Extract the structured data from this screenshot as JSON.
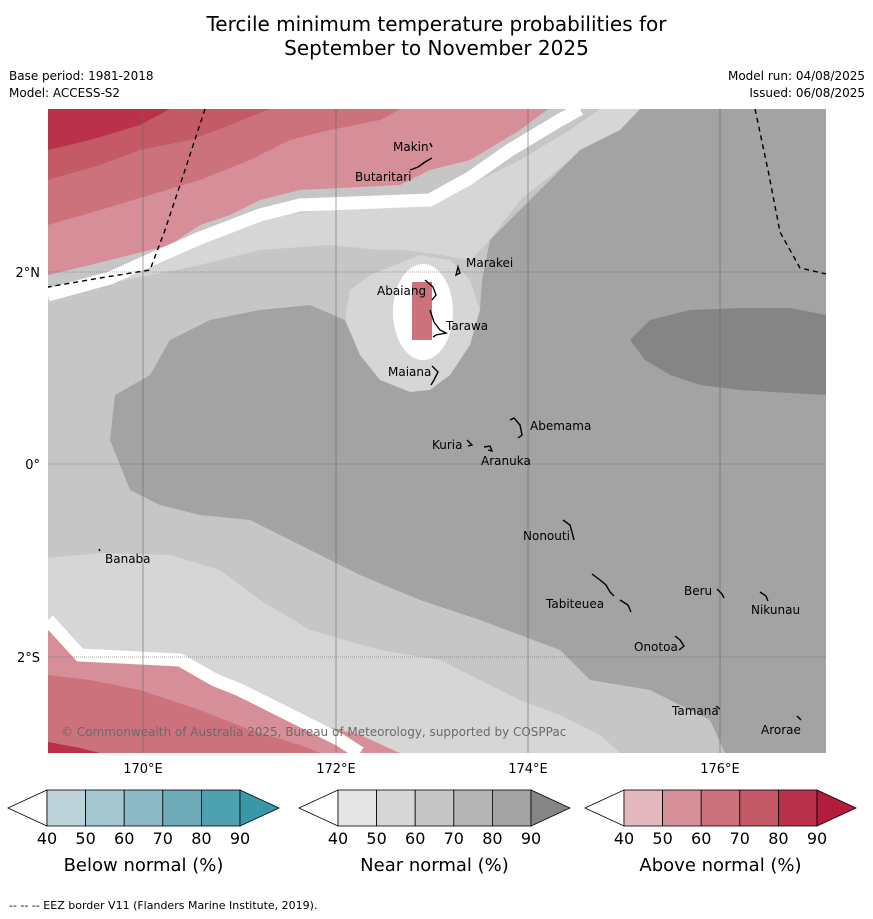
{
  "title_line1": "Tercile minimum temperature probabilities for",
  "title_line2": "September to November 2025",
  "base_period": "Base period: 1981-2018",
  "model": "Model: ACCESS-S2",
  "model_run": "Model run: 04/08/2025",
  "issued": "Issued: 06/08/2025",
  "map": {
    "lon_labels": [
      "170°E",
      "172°E",
      "174°E",
      "176°E"
    ],
    "lat_labels": [
      "2°N",
      "0°",
      "2°S"
    ],
    "places": [
      "Makin",
      "Butaritari",
      "Marakei",
      "Abaiang",
      "Tarawa",
      "Maiana",
      "Abemama",
      "Kuria",
      "Aranuka",
      "Nonouti",
      "Banaba",
      "Beru",
      "Tabiteuea",
      "Nikunau",
      "Onotoa",
      "Tamana",
      "Arorae"
    ],
    "copyright": "© Commonwealth of Australia 2025, Bureau of Meteorology, supported by COSPPac"
  },
  "colorbars": [
    {
      "label": "Below normal (%)",
      "ticks": [
        "40",
        "50",
        "60",
        "70",
        "80",
        "90"
      ],
      "colors": [
        "#ffffff",
        "#bcd3da",
        "#a5c7cf",
        "#8cb9c4",
        "#6eabb8",
        "#4ea1b1",
        "#3a97a8"
      ]
    },
    {
      "label": "Near normal (%)",
      "ticks": [
        "40",
        "50",
        "60",
        "70",
        "80",
        "90"
      ],
      "colors": [
        "#ffffff",
        "#e6e6e6",
        "#d6d6d6",
        "#c6c6c6",
        "#b5b5b5",
        "#a3a3a3",
        "#858585"
      ]
    },
    {
      "label": "Above normal (%)",
      "ticks": [
        "40",
        "50",
        "60",
        "70",
        "80",
        "90"
      ],
      "colors": [
        "#ffffff",
        "#e2b7bd",
        "#d68f98",
        "#cc727c",
        "#c45a66",
        "#b9314a",
        "#b31c3d"
      ]
    }
  ],
  "footnote": "--  --  -- EEZ border V11 (Flanders Marine Institute, 2019)."
}
